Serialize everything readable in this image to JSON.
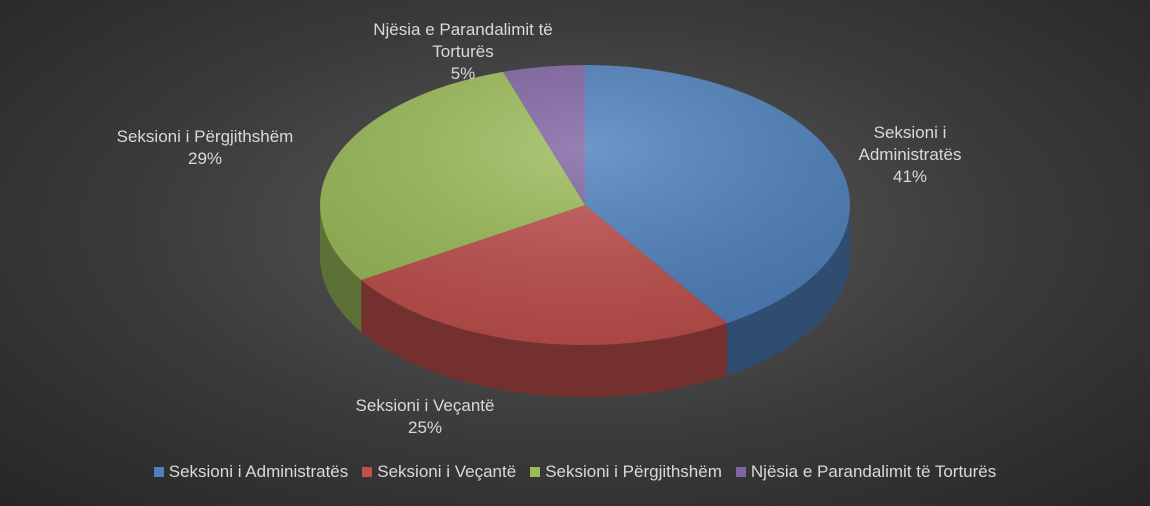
{
  "chart_data": {
    "type": "pie3d",
    "categories": [
      "Seksioni i Administratës",
      "Seksioni i Veçantë",
      "Seksioni i Përgjithshëm",
      "Njësia e Parandalimit të Torturës"
    ],
    "values": [
      41,
      25,
      29,
      5
    ],
    "value_labels": [
      "41%",
      "25%",
      "29%",
      "5%"
    ],
    "colors": [
      "#4f81bd",
      "#c0504d",
      "#9bbb59",
      "#8064a2"
    ],
    "legend": "bottom"
  }
}
